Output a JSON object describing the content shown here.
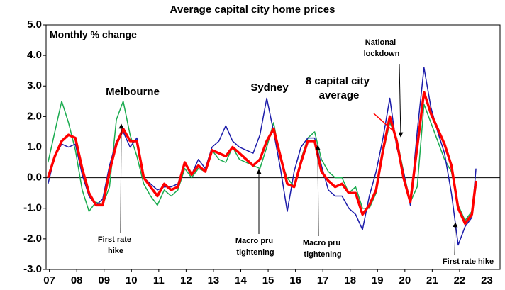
{
  "chart_data": {
    "type": "line",
    "title": "Average capital city home prices",
    "ylabel": "Monthly % change",
    "x": [
      7.45,
      7.7,
      7.95,
      8.2,
      8.45,
      8.7,
      8.95,
      9.2,
      9.45,
      9.7,
      9.95,
      10.2,
      10.45,
      10.7,
      10.95,
      11.2,
      11.45,
      11.7,
      11.95,
      12.2,
      12.45,
      12.7,
      12.95,
      13.2,
      13.45,
      13.7,
      13.95,
      14.2,
      14.45,
      14.7,
      14.95,
      15.2,
      15.45,
      15.7,
      15.95,
      16.2,
      16.45,
      16.7,
      16.95,
      17.2,
      17.45,
      17.7,
      17.95,
      18.2,
      18.45,
      18.7,
      18.95,
      19.2,
      19.45,
      19.7,
      19.95,
      20.2,
      20.45,
      20.7,
      20.95,
      21.2,
      21.45,
      21.7,
      21.95,
      22.2,
      22.45,
      22.7,
      22.95,
      23.1
    ],
    "series": [
      {
        "name": "Melbourne",
        "color": "#1aab4f",
        "width": 1.5,
        "values": [
          0.5,
          1.5,
          2.5,
          1.8,
          0.9,
          -0.4,
          -1.1,
          -0.8,
          -0.9,
          -0.3,
          1.9,
          2.5,
          1.4,
          0.7,
          -0.2,
          -0.6,
          -0.9,
          -0.4,
          -0.6,
          -0.4,
          0.3,
          0.0,
          0.3,
          0.2,
          0.9,
          0.6,
          0.5,
          1.0,
          0.6,
          0.5,
          0.4,
          0.3,
          1.0,
          1.8,
          0.6,
          0.0,
          -0.3,
          0.6,
          1.3,
          1.5,
          0.6,
          0.2,
          0.0,
          0.0,
          -0.5,
          -0.3,
          -1.0,
          -1.0,
          -0.5,
          0.8,
          1.8,
          1.3,
          0.2,
          -0.8,
          -0.3,
          2.4,
          1.8,
          1.2,
          0.6,
          0.2,
          -0.9,
          -1.4,
          -1.1,
          -0.3
        ]
      },
      {
        "name": "Sydney",
        "color": "#1c1caa",
        "width": 1.5,
        "values": [
          -0.2,
          0.7,
          1.1,
          1.0,
          1.1,
          0.1,
          -0.6,
          -0.9,
          -0.7,
          0.4,
          1.2,
          1.5,
          1.0,
          1.3,
          0.0,
          -0.2,
          -0.4,
          -0.3,
          -0.3,
          -0.2,
          0.5,
          0.1,
          0.6,
          0.3,
          1.0,
          1.2,
          1.7,
          1.2,
          1.0,
          0.9,
          0.8,
          1.4,
          2.6,
          1.5,
          0.3,
          -1.1,
          0.2,
          1.0,
          1.3,
          1.3,
          0.4,
          -0.4,
          -0.6,
          -0.6,
          -1.0,
          -1.2,
          -1.7,
          -0.6,
          0.2,
          1.3,
          2.6,
          1.0,
          0.2,
          -0.9,
          1.5,
          3.6,
          2.3,
          1.5,
          0.8,
          -0.5,
          -2.2,
          -1.6,
          -1.3,
          0.3
        ]
      },
      {
        "name": "8 capital city average",
        "color": "#ff0000",
        "width": 3.5,
        "values": [
          0.0,
          0.7,
          1.2,
          1.4,
          1.3,
          0.3,
          -0.5,
          -0.9,
          -0.9,
          0.2,
          1.1,
          1.6,
          1.2,
          1.2,
          0.0,
          -0.3,
          -0.6,
          -0.2,
          -0.4,
          -0.3,
          0.5,
          0.1,
          0.4,
          0.2,
          0.9,
          0.8,
          0.7,
          1.0,
          0.8,
          0.6,
          0.4,
          0.6,
          1.2,
          1.6,
          0.7,
          -0.2,
          -0.3,
          0.5,
          1.2,
          1.2,
          0.2,
          -0.1,
          -0.3,
          -0.2,
          -0.5,
          -0.5,
          -1.2,
          -0.9,
          -0.4,
          0.9,
          2.0,
          1.2,
          0.0,
          -0.8,
          1.0,
          2.8,
          2.1,
          1.6,
          1.1,
          0.4,
          -1.0,
          -1.5,
          -1.2,
          -0.1
        ]
      }
    ],
    "xlim": [
      7.38,
      23.98
    ],
    "xticks": [
      {
        "value": 7.5,
        "label": "07"
      },
      {
        "value": 8.5,
        "label": "08"
      },
      {
        "value": 9.5,
        "label": "09"
      },
      {
        "value": 10.5,
        "label": "10"
      },
      {
        "value": 11.5,
        "label": "11"
      },
      {
        "value": 12.5,
        "label": "12"
      },
      {
        "value": 13.5,
        "label": "13"
      },
      {
        "value": 14.5,
        "label": "14"
      },
      {
        "value": 15.5,
        "label": "15"
      },
      {
        "value": 16.5,
        "label": "16"
      },
      {
        "value": 17.5,
        "label": "17"
      },
      {
        "value": 18.5,
        "label": "18"
      },
      {
        "value": 19.5,
        "label": "19"
      },
      {
        "value": 20.5,
        "label": "20"
      },
      {
        "value": 21.5,
        "label": "21"
      },
      {
        "value": 22.5,
        "label": "22"
      },
      {
        "value": 23.5,
        "label": "23"
      }
    ],
    "ylim": [
      -3,
      5
    ],
    "yticks": [
      {
        "value": -3,
        "label": "-3.0"
      },
      {
        "value": -2,
        "label": "-2.0"
      },
      {
        "value": -1,
        "label": "-1.0"
      },
      {
        "value": 0,
        "label": "0.0"
      },
      {
        "value": 1,
        "label": "1.0"
      },
      {
        "value": 2,
        "label": "2.0"
      },
      {
        "value": 3,
        "label": "3.0"
      },
      {
        "value": 4,
        "label": "4.0"
      },
      {
        "value": 5,
        "label": "5.0"
      }
    ],
    "annotations": [
      "First rate hike",
      "Macro pru tightening",
      "Macro pru tightening",
      "National lockdown",
      "First rate hike"
    ]
  }
}
